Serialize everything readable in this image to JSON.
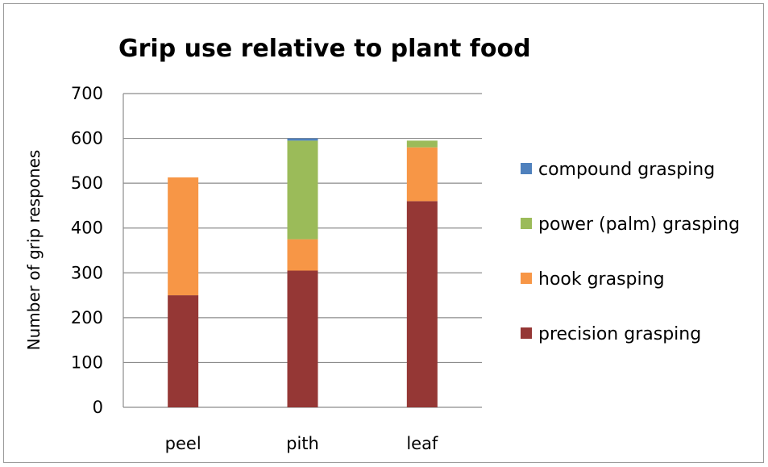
{
  "chart_data": {
    "type": "bar",
    "stacked": true,
    "title": "Grip use relative to plant food",
    "xlabel": "",
    "ylabel": "Number of grip respones",
    "categories": [
      "peel",
      "pith",
      "leaf"
    ],
    "ylim": [
      0,
      700
    ],
    "yticks": [
      0,
      100,
      200,
      300,
      400,
      500,
      600,
      700
    ],
    "grid": true,
    "legend_position": "right",
    "series": [
      {
        "name": "precision grasping",
        "color": "#953735",
        "values": [
          250,
          305,
          460
        ]
      },
      {
        "name": "hook grasping",
        "color": "#F79646",
        "values": [
          263,
          70,
          120
        ]
      },
      {
        "name": "power (palm) grasping",
        "color": "#9BBB59",
        "values": [
          0,
          220,
          15
        ]
      },
      {
        "name": "compound grasping",
        "color": "#4F81BD",
        "values": [
          0,
          5,
          0
        ]
      }
    ]
  }
}
